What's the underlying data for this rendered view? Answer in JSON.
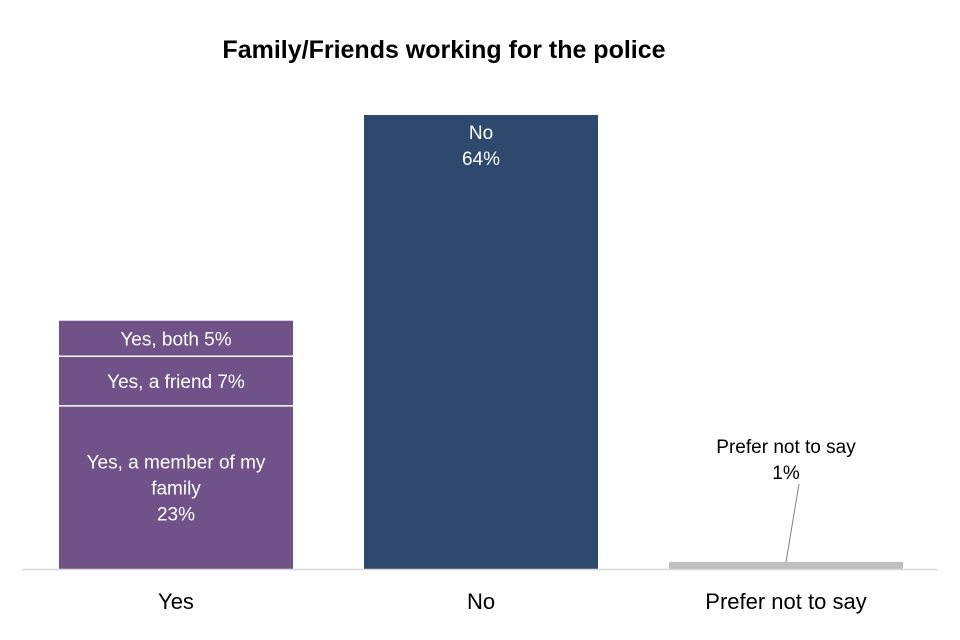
{
  "chart_data": {
    "type": "bar",
    "stacked": true,
    "title": "Family/Friends working for the police",
    "xlabel": "",
    "ylabel": "",
    "ylim": [
      0,
      64
    ],
    "grid": false,
    "categories": [
      "Yes",
      "No",
      "Prefer not to say"
    ],
    "series": [
      {
        "name": "Yes, a member of my family",
        "category": "Yes",
        "value": 23,
        "label_lines": [
          "Yes, a member of my",
          "family",
          "23%"
        ],
        "color": "#6e5288"
      },
      {
        "name": "Yes, a friend",
        "category": "Yes",
        "value": 7,
        "label_lines": [
          "Yes, a friend 7%"
        ],
        "color": "#6e5288"
      },
      {
        "name": "Yes, both",
        "category": "Yes",
        "value": 5,
        "label_lines": [
          "Yes, both 5%"
        ],
        "color": "#6e5288"
      },
      {
        "name": "No",
        "category": "No",
        "value": 64,
        "label_lines": [
          "No",
          "64%"
        ],
        "color": "#2d4a6e"
      },
      {
        "name": "Prefer not to say",
        "category": "Prefer not to say",
        "value": 1,
        "label_lines": [
          "Prefer not to say",
          "1%"
        ],
        "color": "#bfbfbf"
      }
    ]
  }
}
